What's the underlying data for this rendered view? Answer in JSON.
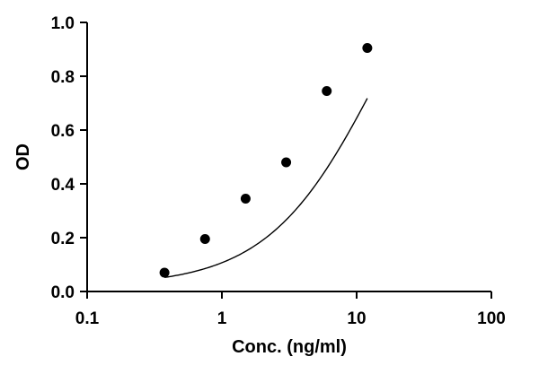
{
  "chart_data": {
    "type": "scatter",
    "xlabel": "Conc. (ng/ml)",
    "ylabel": "OD",
    "xscale": "log",
    "xlim": [
      0.1,
      100
    ],
    "ylim": [
      0.0,
      1.0
    ],
    "xticks": [
      "0.1",
      "1",
      "10",
      "100"
    ],
    "yticks": [
      "0.0",
      "0.2",
      "0.4",
      "0.6",
      "0.8",
      "1.0"
    ],
    "grid": false,
    "series": [
      {
        "x": [
          0.375,
          0.75,
          1.5,
          3,
          6,
          12
        ],
        "y": [
          0.07,
          0.195,
          0.345,
          0.48,
          0.745,
          0.905
        ]
      }
    ],
    "fit_curve": {
      "type": "4PL",
      "bottom": 0.02,
      "top": 1.6,
      "ec50": 15,
      "hill": 1.05
    }
  }
}
